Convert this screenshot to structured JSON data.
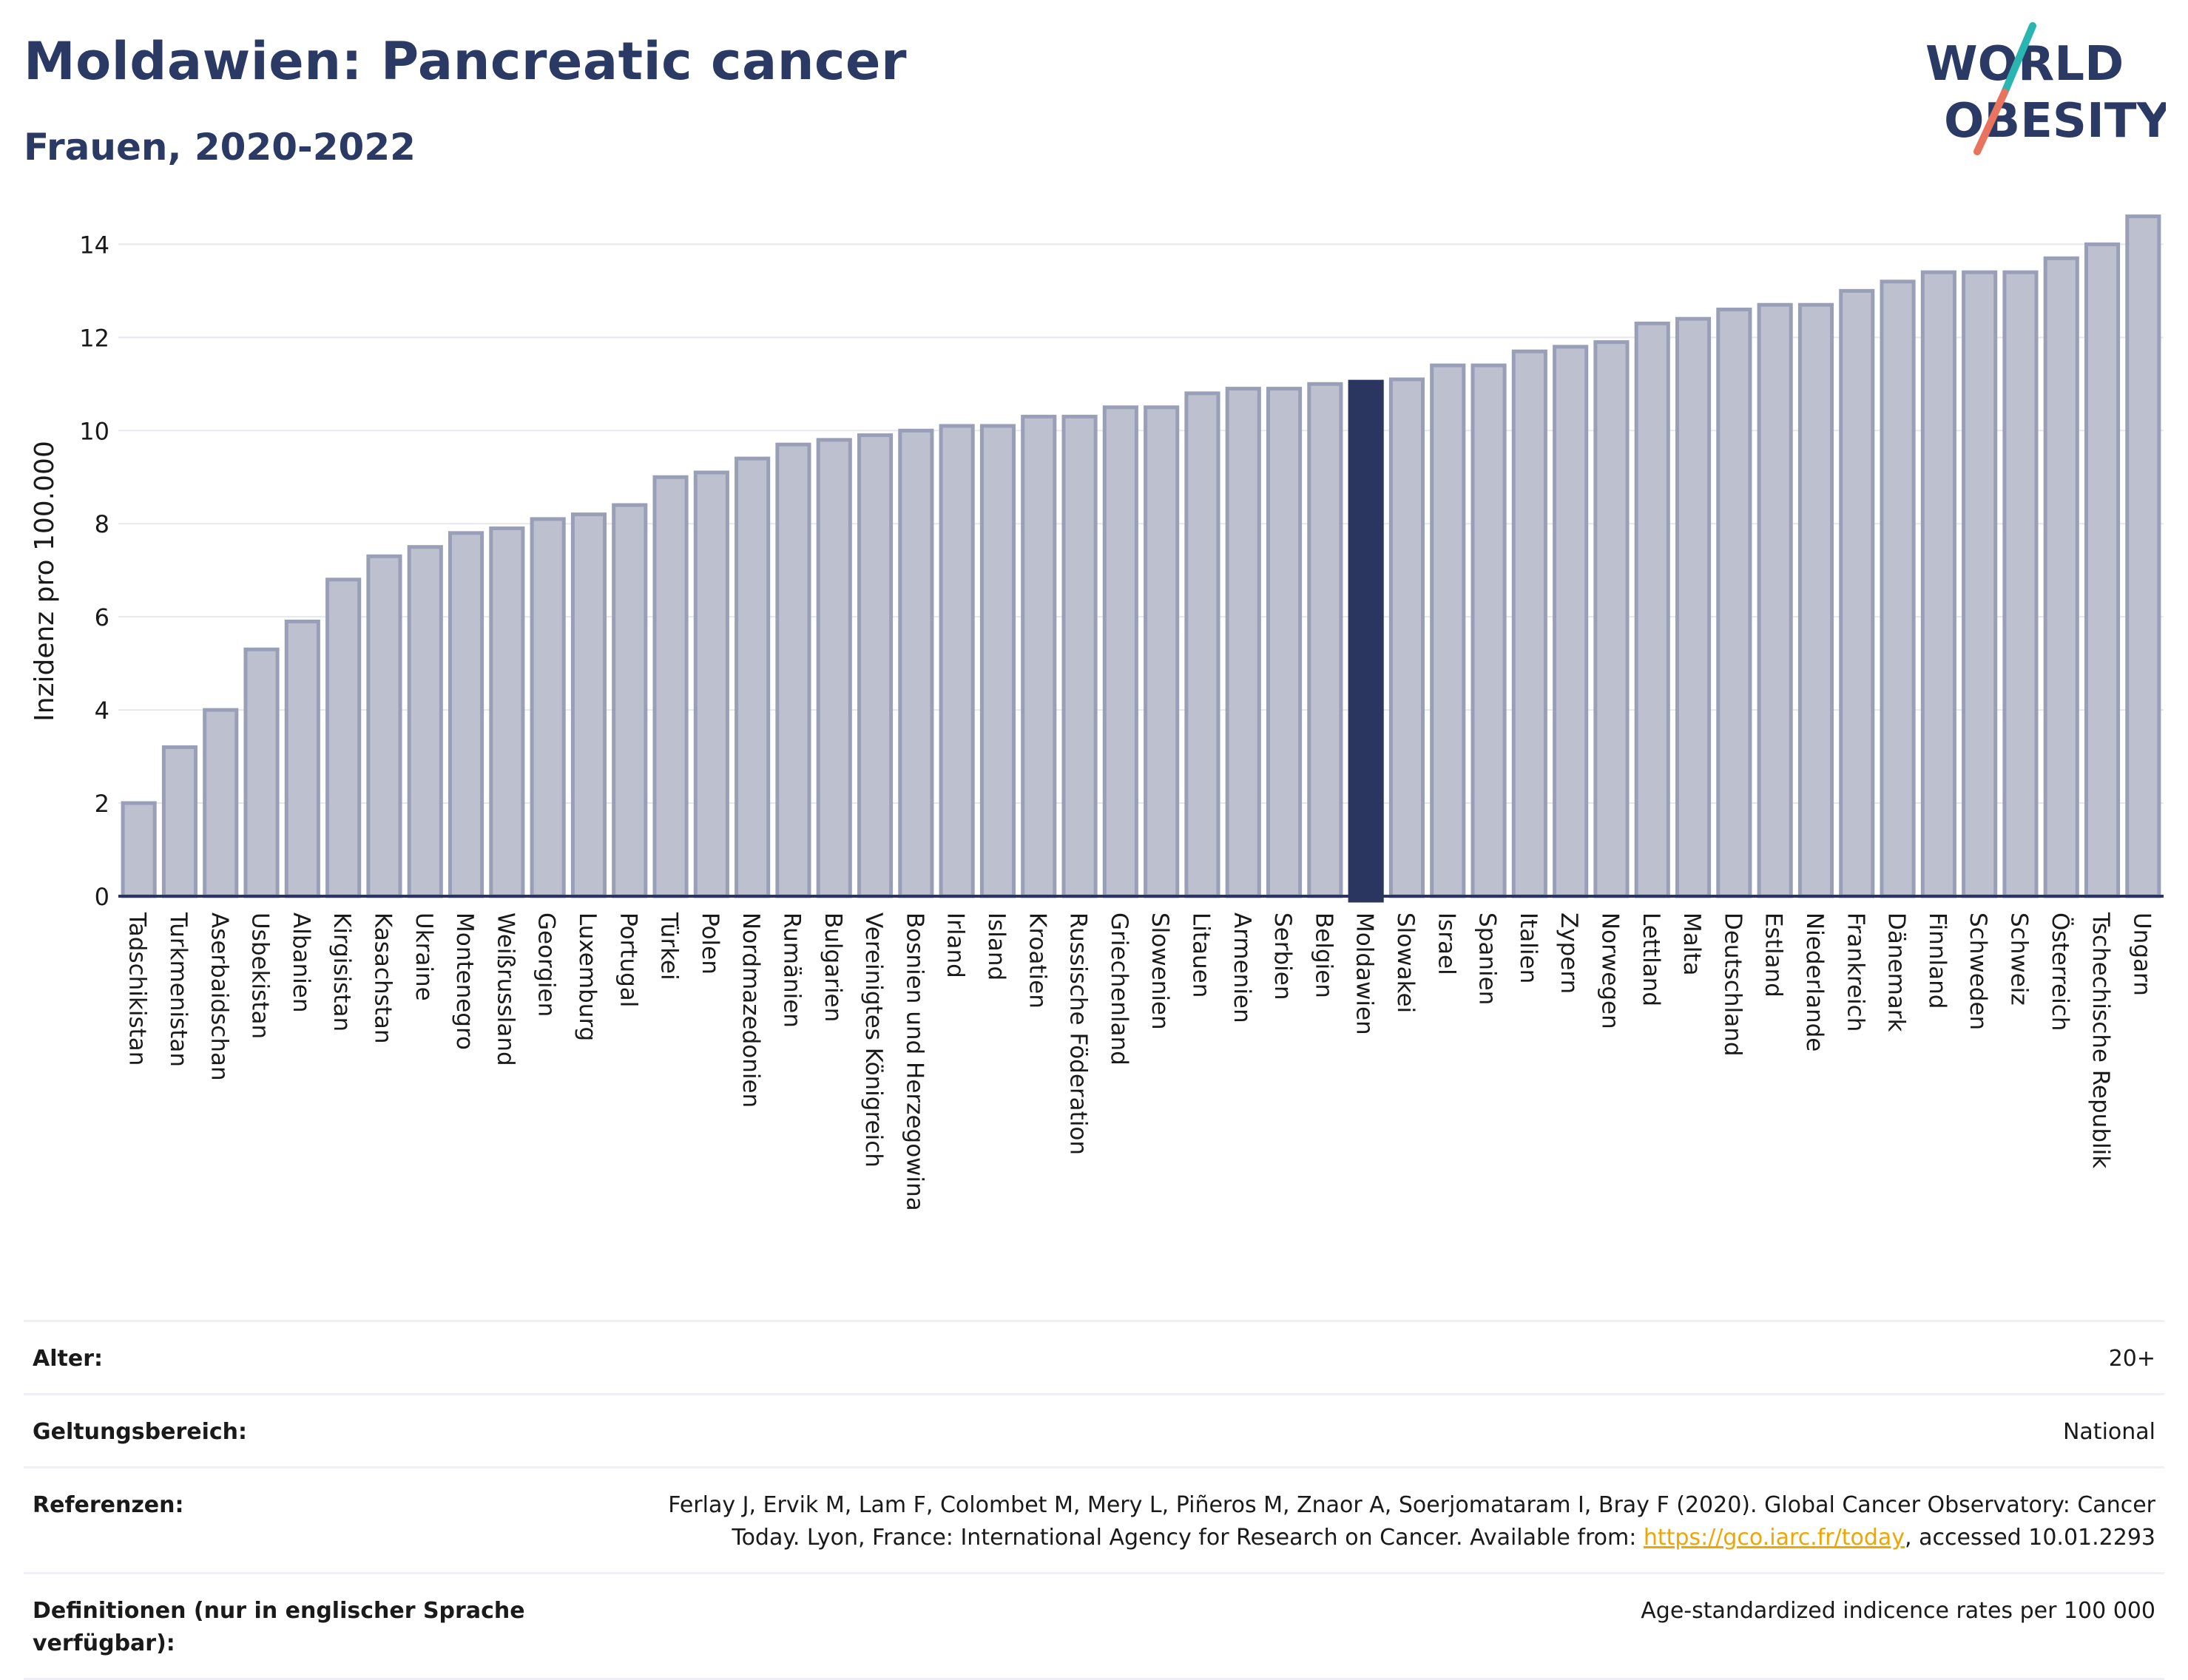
{
  "header": {
    "title": "Moldawien: Pancreatic cancer",
    "subtitle": "Frauen, 2020-2022"
  },
  "logo": {
    "line1": "WORLD",
    "line2": "OBESITY",
    "colors": {
      "text": "#2a3a64",
      "slash_top": "#2bb5b0",
      "slash_bottom": "#e8735e"
    }
  },
  "colors": {
    "bar_fill": "#bcc0cf",
    "bar_stroke": "#9a9fb8",
    "highlight_fill": "#2a3560",
    "axis": "#2a3560",
    "grid": "#e6e8ee"
  },
  "chart_data": {
    "type": "bar",
    "title": "",
    "xlabel": "",
    "ylabel": "Inzidenz pro 100.000",
    "ylim": [
      0,
      14.8
    ],
    "yticks": [
      0,
      2,
      4,
      6,
      8,
      10,
      12,
      14
    ],
    "grid": true,
    "highlight": "Moldawien",
    "categories": [
      "Tadschikistan",
      "Turkmenistan",
      "Aserbaidschan",
      "Usbekistan",
      "Albanien",
      "Kirgisistan",
      "Kasachstan",
      "Ukraine",
      "Montenegro",
      "Weißrussland",
      "Georgien",
      "Luxemburg",
      "Portugal",
      "Türkei",
      "Polen",
      "Nordmazedonien",
      "Rumänien",
      "Bulgarien",
      "Vereinigtes Königreich",
      "Bosnien und Herzegowina",
      "Irland",
      "Island",
      "Kroatien",
      "Russische Föderation",
      "Griechenland",
      "Slowenien",
      "Litauen",
      "Armenien",
      "Serbien",
      "Belgien",
      "Moldawien",
      "Slowakei",
      "Israel",
      "Spanien",
      "Italien",
      "Zypern",
      "Norwegen",
      "Lettland",
      "Malta",
      "Deutschland",
      "Estland",
      "Niederlande",
      "Frankreich",
      "Dänemark",
      "Finnland",
      "Schweden",
      "Schweiz",
      "Österreich",
      "Tschechische Republik",
      "Ungarn"
    ],
    "values": [
      2.0,
      3.2,
      4.0,
      5.3,
      5.9,
      6.8,
      7.3,
      7.5,
      7.8,
      7.9,
      8.1,
      8.2,
      8.4,
      9.0,
      9.1,
      9.4,
      9.7,
      9.8,
      9.9,
      10.0,
      10.1,
      10.1,
      10.3,
      10.3,
      10.5,
      10.5,
      10.8,
      10.9,
      10.9,
      11.0,
      11.05,
      11.1,
      11.4,
      11.4,
      11.7,
      11.8,
      11.9,
      12.3,
      12.4,
      12.6,
      12.7,
      12.7,
      13.0,
      13.2,
      13.4,
      13.4,
      13.4,
      13.7,
      14.0,
      14.6
    ]
  },
  "meta": {
    "rows": [
      {
        "label": "Alter:",
        "value": "20+"
      },
      {
        "label": "Geltungsbereich:",
        "value": "National"
      },
      {
        "label": "Referenzen:",
        "value_line1": "Ferlay J, Ervik M, Lam F, Colombet M, Mery L, Piñeros M, Znaor A, Soerjomataram I, Bray F (2020). Global Cancer Observatory: Cancer",
        "value_line2_pre": "Today. Lyon, France: International Agency for Research on Cancer. Available from: ",
        "link": "https://gco.iarc.fr/today",
        "value_line2_post": ", accessed 10.01.2293"
      },
      {
        "label": "Definitionen (nur in englischer Sprache verfügbar):",
        "value": "Age-standardized indicence rates per 100 000"
      }
    ]
  }
}
